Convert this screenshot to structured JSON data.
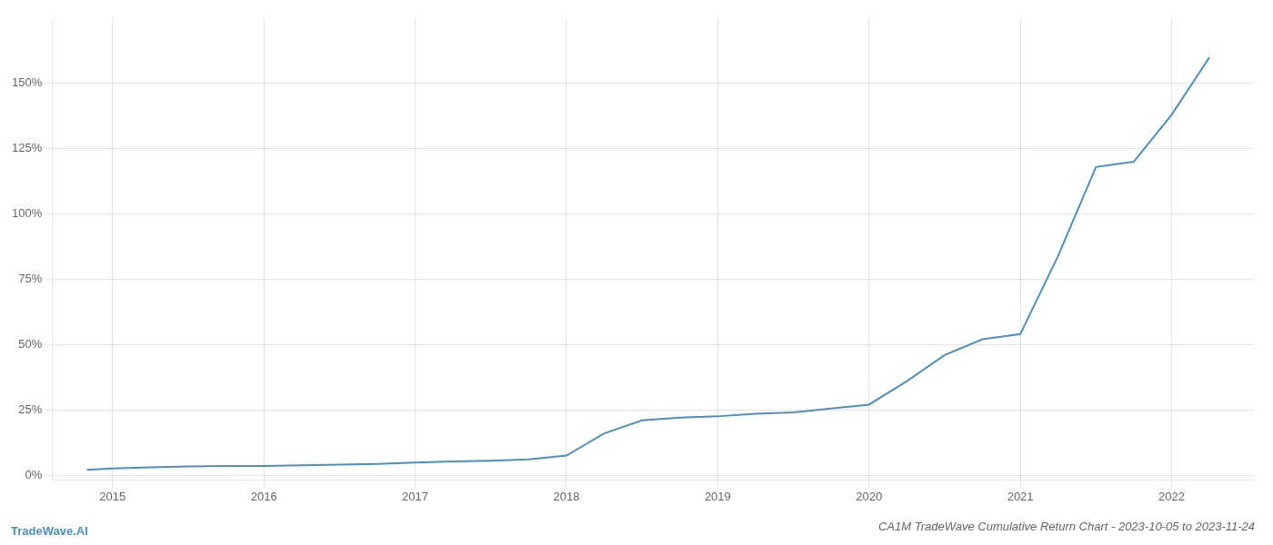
{
  "chart_data": {
    "type": "line",
    "title": "CA1M TradeWave Cumulative Return Chart - 2023-10-05 to 2023-11-24",
    "annotations": [
      "TradeWave.AI"
    ],
    "color": "#4a90c4",
    "x": [
      2014.83,
      2015.0,
      2015.25,
      2015.5,
      2015.75,
      2016.0,
      2016.25,
      2016.5,
      2016.75,
      2017.0,
      2017.25,
      2017.5,
      2017.75,
      2018.0,
      2018.25,
      2018.5,
      2018.75,
      2019.0,
      2019.25,
      2019.5,
      2019.75,
      2020.0,
      2020.25,
      2020.5,
      2020.75,
      2021.0,
      2021.25,
      2021.5,
      2021.75,
      2022.0,
      2022.25
    ],
    "values": [
      0.02,
      0.025,
      0.03,
      0.033,
      0.035,
      0.035,
      0.038,
      0.04,
      0.043,
      0.048,
      0.052,
      0.055,
      0.06,
      0.075,
      0.16,
      0.21,
      0.22,
      0.225,
      0.235,
      0.24,
      0.255,
      0.27,
      0.36,
      0.46,
      0.52,
      0.54,
      0.84,
      1.18,
      1.2,
      1.38,
      1.6
    ],
    "xlim": [
      2014.6,
      2022.55
    ],
    "ylim": [
      -0.02,
      1.75
    ],
    "xticks": [
      2015,
      2016,
      2017,
      2018,
      2019,
      2020,
      2021,
      2022
    ],
    "yticks": [
      {
        "value": 0.0,
        "label": "0%"
      },
      {
        "value": 0.25,
        "label": "25%"
      },
      {
        "value": 0.5,
        "label": "50%"
      },
      {
        "value": 0.75,
        "label": "75%"
      },
      {
        "value": 1.0,
        "label": "100%"
      },
      {
        "value": 1.25,
        "label": "125%"
      },
      {
        "value": 1.5,
        "label": "150%"
      }
    ],
    "grid": true
  }
}
